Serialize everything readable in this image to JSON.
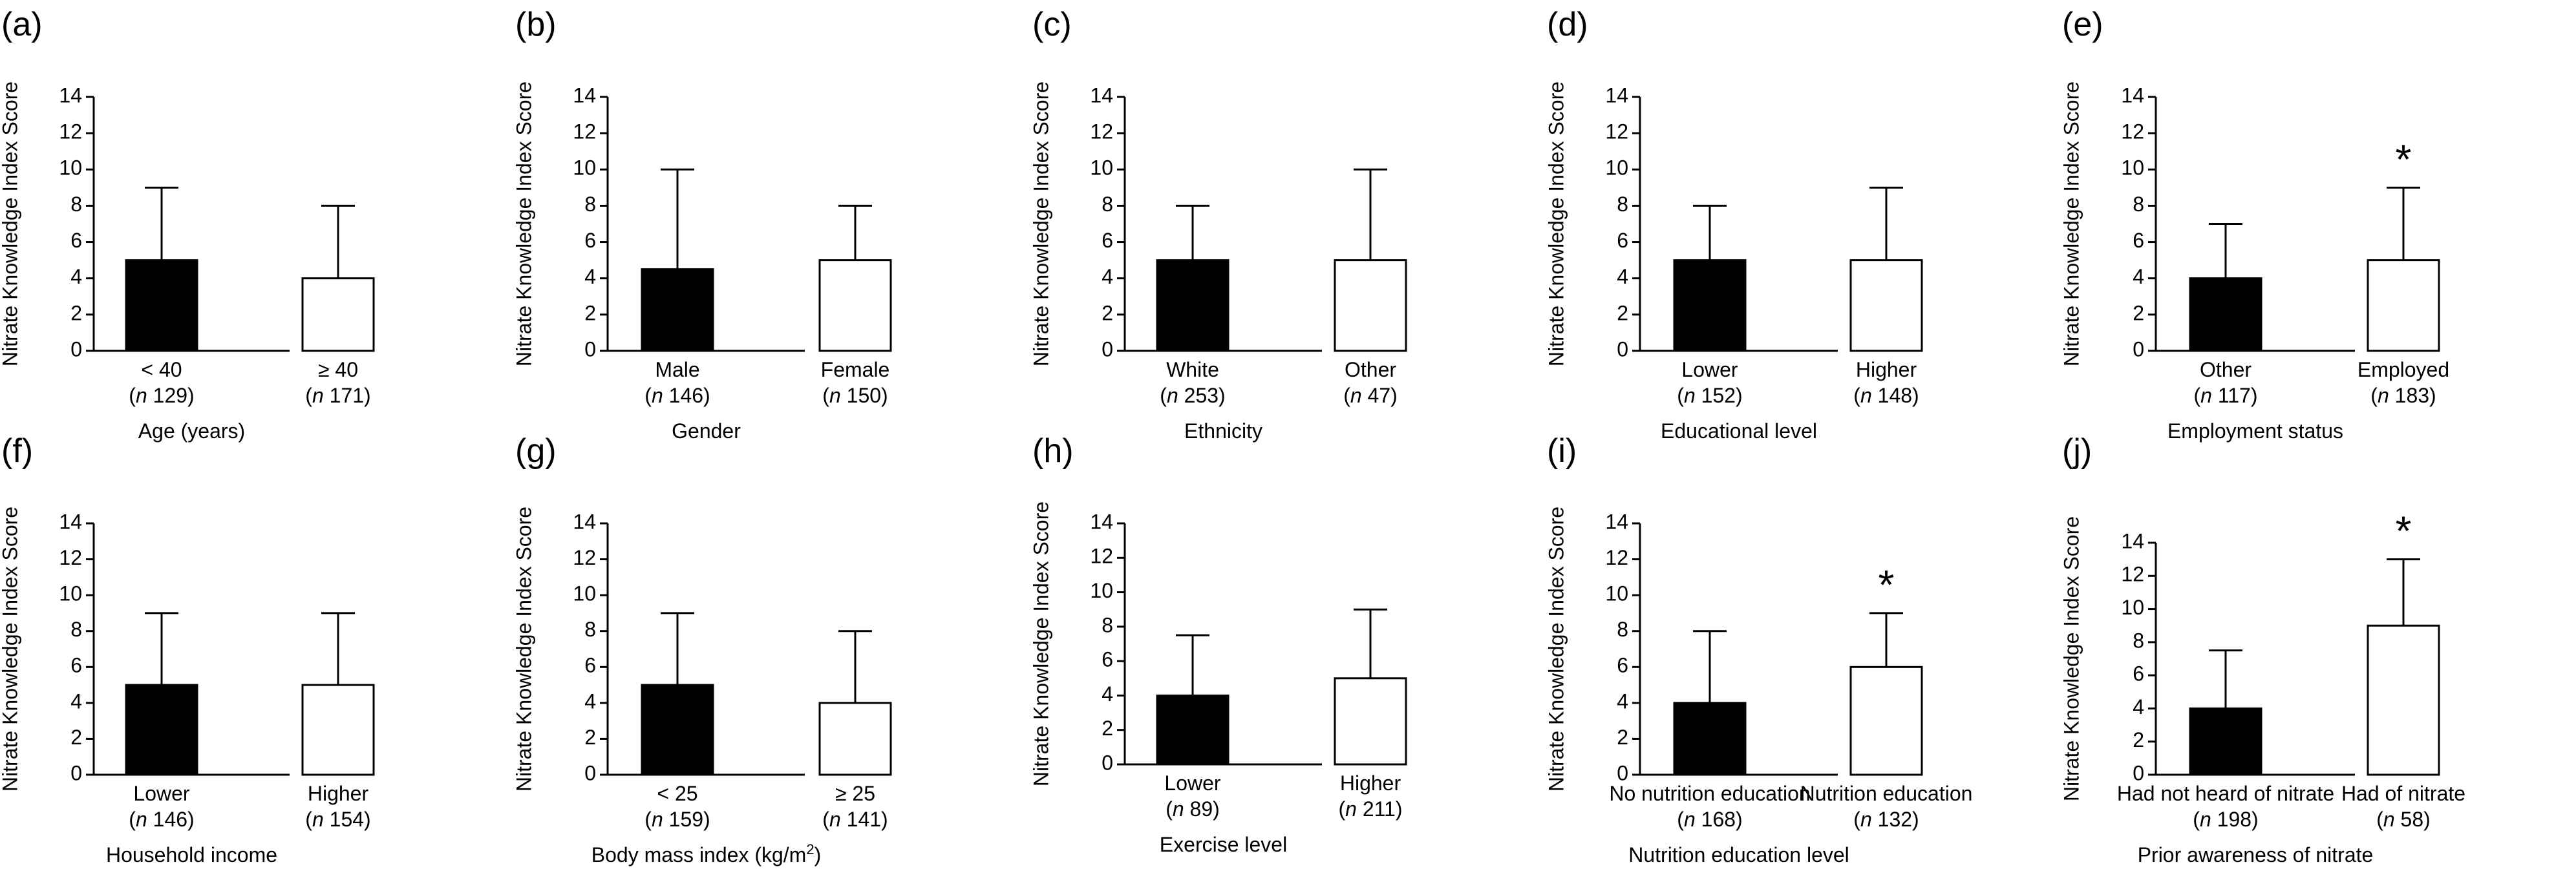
{
  "chart_data": [
    {
      "panel": "(a)",
      "type": "bar",
      "ylabel": "Nitrate Knowledge Index Score",
      "xlabel": "Age (years)",
      "ylim": [
        0,
        14
      ],
      "yticks": [
        0,
        2,
        4,
        6,
        8,
        10,
        12,
        14
      ],
      "bars": [
        {
          "category": "< 40",
          "n_label": "n 129",
          "value": 5,
          "error_upper": 9,
          "fill": "#000000",
          "significant": false
        },
        {
          "category": "≥ 40",
          "n_label": "n 171",
          "value": 4,
          "error_upper": 8,
          "fill": "#ffffff",
          "significant": false
        }
      ]
    },
    {
      "panel": "(b)",
      "type": "bar",
      "ylabel": "Nitrate Knowledge Index Score",
      "xlabel": "Gender",
      "ylim": [
        0,
        14
      ],
      "yticks": [
        0,
        2,
        4,
        6,
        8,
        10,
        12,
        14
      ],
      "bars": [
        {
          "category": "Male",
          "n_label": "n 146",
          "value": 4.5,
          "error_upper": 10,
          "fill": "#000000",
          "significant": false
        },
        {
          "category": "Female",
          "n_label": "n 150",
          "value": 5,
          "error_upper": 8,
          "fill": "#ffffff",
          "significant": false
        }
      ]
    },
    {
      "panel": "(c)",
      "type": "bar",
      "ylabel": "Nitrate Knowledge Index Score",
      "xlabel": "Ethnicity",
      "ylim": [
        0,
        14
      ],
      "yticks": [
        0,
        2,
        4,
        6,
        8,
        10,
        12,
        14
      ],
      "bars": [
        {
          "category": "White",
          "n_label": "n 253",
          "value": 5,
          "error_upper": 8,
          "fill": "#000000",
          "significant": false
        },
        {
          "category": "Other",
          "n_label": "n 47",
          "value": 5,
          "error_upper": 10,
          "fill": "#ffffff",
          "significant": false
        }
      ]
    },
    {
      "panel": "(d)",
      "type": "bar",
      "ylabel": "Nitrate Knowledge Index Score",
      "xlabel": "Educational level",
      "ylim": [
        0,
        14
      ],
      "yticks": [
        0,
        2,
        4,
        6,
        8,
        10,
        12,
        14
      ],
      "bars": [
        {
          "category": "Lower",
          "n_label": "n 152",
          "value": 5,
          "error_upper": 8,
          "fill": "#000000",
          "significant": false
        },
        {
          "category": "Higher",
          "n_label": "n 148",
          "value": 5,
          "error_upper": 9,
          "fill": "#ffffff",
          "significant": false
        }
      ]
    },
    {
      "panel": "(e)",
      "type": "bar",
      "ylabel": "Nitrate Knowledge Index Score",
      "xlabel": "Employment status",
      "ylim": [
        0,
        14
      ],
      "yticks": [
        0,
        2,
        4,
        6,
        8,
        10,
        12,
        14
      ],
      "bars": [
        {
          "category": "Other",
          "n_label": "n 117",
          "value": 4,
          "error_upper": 7,
          "fill": "#000000",
          "significant": false
        },
        {
          "category": "Employed",
          "n_label": "n 183",
          "value": 5,
          "error_upper": 9,
          "fill": "#ffffff",
          "significant": true
        }
      ]
    },
    {
      "panel": "(f)",
      "type": "bar",
      "ylabel": "Nitrate Knowledge Index Score",
      "xlabel": "Household income",
      "ylim": [
        0,
        14
      ],
      "yticks": [
        0,
        2,
        4,
        6,
        8,
        10,
        12,
        14
      ],
      "bars": [
        {
          "category": "Lower",
          "n_label": "n 146",
          "value": 5,
          "error_upper": 9,
          "fill": "#000000",
          "significant": false
        },
        {
          "category": "Higher",
          "n_label": "n 154",
          "value": 5,
          "error_upper": 9,
          "fill": "#ffffff",
          "significant": false
        }
      ]
    },
    {
      "panel": "(g)",
      "type": "bar",
      "ylabel": "Nitrate Knowledge Index Score",
      "xlabel": "Body mass index (kg/m",
      "xlabel_sup": "2",
      "xlabel_tail": ")",
      "ylim": [
        0,
        14
      ],
      "yticks": [
        0,
        2,
        4,
        6,
        8,
        10,
        12,
        14
      ],
      "bars": [
        {
          "category": "< 25",
          "n_label": "n 159",
          "value": 5,
          "error_upper": 9,
          "fill": "#000000",
          "significant": false
        },
        {
          "category": "≥ 25",
          "n_label": "n 141",
          "value": 4,
          "error_upper": 8,
          "fill": "#ffffff",
          "significant": false
        }
      ]
    },
    {
      "panel": "(h)",
      "type": "bar",
      "ylabel": "Nitrate Knowledge Index Score",
      "xlabel": "Exercise level",
      "ylim": [
        0,
        14
      ],
      "yticks": [
        0,
        2,
        4,
        6,
        8,
        10,
        12,
        14
      ],
      "bars": [
        {
          "category": "Lower",
          "n_label": "n 89",
          "value": 4,
          "error_upper": 7.5,
          "fill": "#000000",
          "significant": false
        },
        {
          "category": "Higher",
          "n_label": "n 211",
          "value": 5,
          "error_upper": 9,
          "fill": "#ffffff",
          "significant": false
        }
      ]
    },
    {
      "panel": "(i)",
      "type": "bar",
      "ylabel": "Nitrate Knowledge Index Score",
      "xlabel": "Nutrition education level",
      "ylim": [
        0,
        14
      ],
      "yticks": [
        0,
        2,
        4,
        6,
        8,
        10,
        12,
        14
      ],
      "bars": [
        {
          "category": "No nutrition education",
          "n_label": "n 168",
          "value": 4,
          "error_upper": 8,
          "fill": "#000000",
          "significant": false
        },
        {
          "category": "Nutrition education",
          "n_label": "n 132",
          "value": 6,
          "error_upper": 9,
          "fill": "#ffffff",
          "significant": true
        }
      ]
    },
    {
      "panel": "(j)",
      "type": "bar",
      "ylabel": "Nitrate Knowledge Index Score",
      "xlabel": "Prior awareness of nitrate",
      "ylim": [
        0,
        14
      ],
      "yticks": [
        0,
        2,
        4,
        6,
        8,
        10,
        12,
        14
      ],
      "bars": [
        {
          "category": "Had not heard of nitrate",
          "n_label": "n 198",
          "value": 4,
          "error_upper": 7.5,
          "fill": "#000000",
          "significant": false
        },
        {
          "category": "Had of nitrate",
          "n_label": "n 58",
          "value": 9,
          "error_upper": 13,
          "fill": "#ffffff",
          "significant": true
        }
      ]
    }
  ],
  "significance_marker": "*"
}
